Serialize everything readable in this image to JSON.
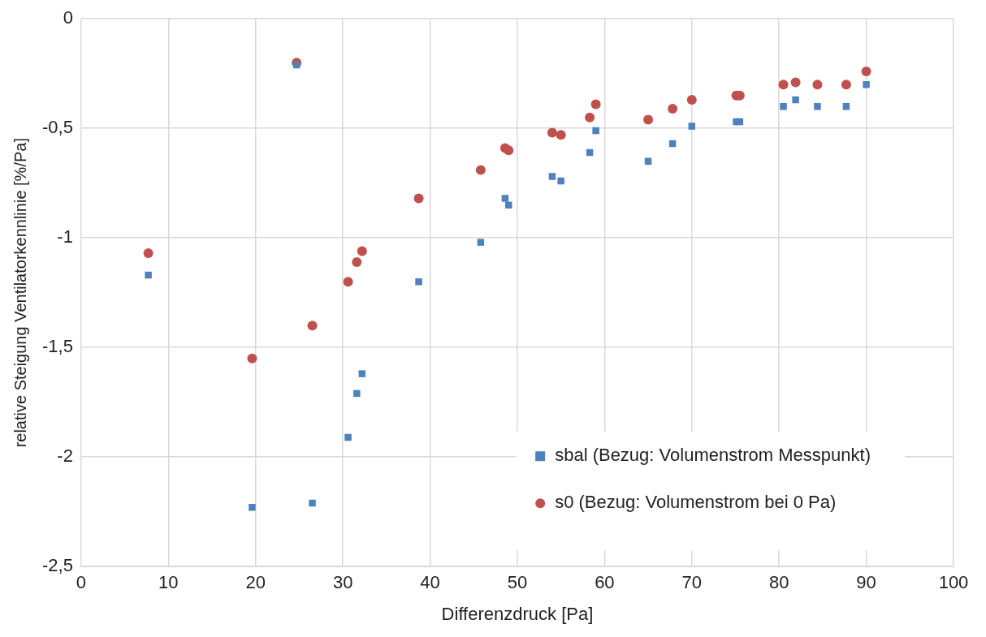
{
  "chart_data": {
    "type": "scatter",
    "xlabel": "Differenzdruck [Pa]",
    "ylabel": "relative Steigung Ventilatorkennlinie [%/Pa]",
    "xlim": [
      0,
      100
    ],
    "xticks": [
      0,
      10,
      20,
      30,
      40,
      50,
      60,
      70,
      80,
      90,
      100
    ],
    "ylim": [
      -2.5,
      0
    ],
    "yticks": [
      {
        "value": -2.5,
        "label": "-2,5"
      },
      -2,
      {
        "value": -1.5,
        "label": "-1,5"
      },
      -1,
      {
        "value": -0.5,
        "label": "-0,5"
      },
      0
    ],
    "grid": true,
    "legend": "bottom right",
    "series": [
      {
        "name": "sbal (Bezug: Volumenstrom Messpunkt)",
        "color": "#4f81bd",
        "marker": "square",
        "x": [
          7.7,
          19.6,
          24.7,
          26.5,
          30.6,
          31.6,
          32.2,
          38.7,
          45.8,
          48.6,
          49.0,
          54.0,
          55.0,
          58.3,
          59.0,
          65.0,
          67.8,
          70.0,
          75.1,
          75.5,
          80.5,
          81.9,
          84.4,
          87.7,
          90.0
        ],
        "values": [
          -1.17,
          -2.23,
          -0.21,
          -2.21,
          -1.91,
          -1.71,
          -1.62,
          -1.2,
          -1.02,
          -0.82,
          -0.85,
          -0.72,
          -0.74,
          -0.61,
          -0.51,
          -0.65,
          -0.57,
          -0.49,
          -0.47,
          -0.47,
          -0.4,
          -0.37,
          -0.4,
          -0.4,
          -0.3
        ]
      },
      {
        "name": "s0 (Bezug: Volumenstrom bei 0 Pa)",
        "color": "#c0504d",
        "marker": "circle",
        "x": [
          7.7,
          19.6,
          24.7,
          26.5,
          30.6,
          31.6,
          32.2,
          38.7,
          45.8,
          48.6,
          49.0,
          54.0,
          55.0,
          58.3,
          59.0,
          65.0,
          67.8,
          70.0,
          75.1,
          75.5,
          80.5,
          81.9,
          84.4,
          87.7,
          90.0
        ],
        "values": [
          -1.07,
          -1.55,
          -0.2,
          -1.4,
          -1.2,
          -1.11,
          -1.06,
          -0.82,
          -0.69,
          -0.59,
          -0.6,
          -0.52,
          -0.53,
          -0.45,
          -0.39,
          -0.46,
          -0.41,
          -0.37,
          -0.35,
          -0.35,
          -0.3,
          -0.29,
          -0.3,
          -0.3,
          -0.24
        ]
      }
    ]
  }
}
